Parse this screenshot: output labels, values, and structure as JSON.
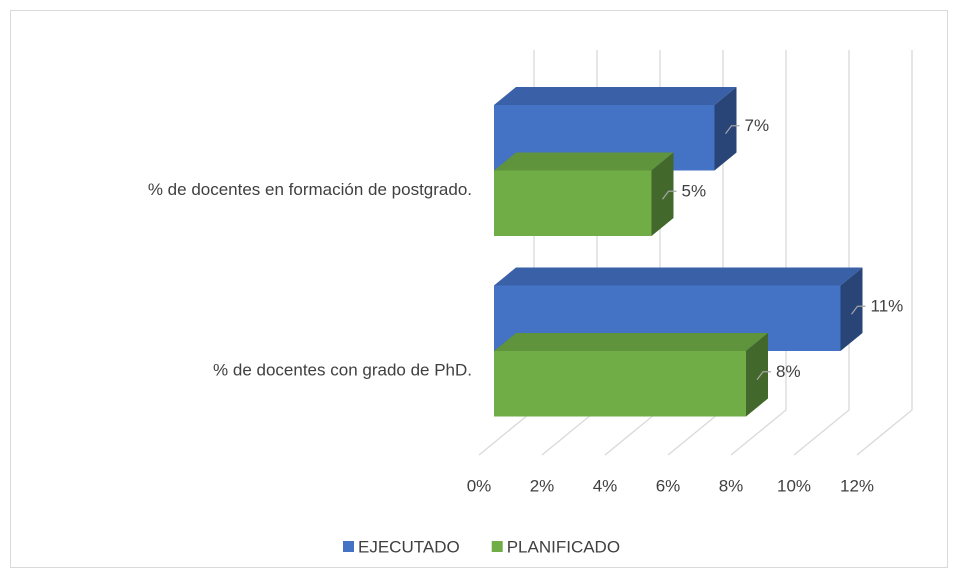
{
  "chart_data": {
    "type": "bar3d_horizontal",
    "categories": [
      "% de docentes en formación de postgrado.",
      "% de docentes con grado de PhD."
    ],
    "series": [
      {
        "name": "EJECUTADO",
        "color": "#4472c4",
        "values": [
          7,
          11
        ],
        "value_labels": [
          "7%",
          "11%"
        ]
      },
      {
        "name": "PLANIFICADO",
        "color": "#70ad47",
        "values": [
          5,
          8
        ],
        "value_labels": [
          "5%",
          "8%"
        ]
      }
    ],
    "xlim": [
      0,
      12
    ],
    "xticks": [
      {
        "value": 0,
        "label": "0%"
      },
      {
        "value": 2,
        "label": "2%"
      },
      {
        "value": 4,
        "label": "4%"
      },
      {
        "value": 6,
        "label": "6%"
      },
      {
        "value": 8,
        "label": "8%"
      },
      {
        "value": 10,
        "label": "10%"
      },
      {
        "value": 12,
        "label": "12%"
      }
    ],
    "grid": true,
    "legend": "bottom"
  }
}
